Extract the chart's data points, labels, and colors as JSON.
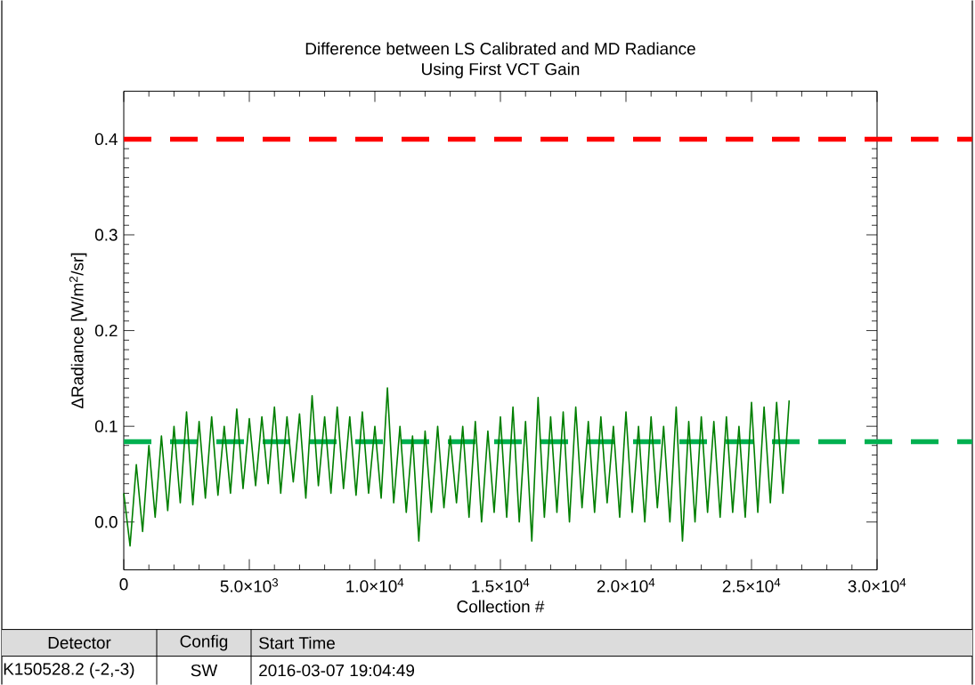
{
  "chart_data": {
    "type": "line",
    "title": "Difference between LS Calibrated and MD Radiance",
    "subtitle": "Using First VCT Gain",
    "xlabel": "Collection #",
    "ylabel": "ΔRadiance [W/m$^{2}$/sr]",
    "xlim": [
      0,
      30000
    ],
    "ylim": [
      -0.05,
      0.45
    ],
    "xticks": [
      0,
      {
        "value": 5000,
        "label": "5.0×10$^{3}$"
      },
      {
        "value": 10000,
        "label": "1.0×10$^{4}$"
      },
      {
        "value": 15000,
        "label": "1.5×10$^{4}$"
      },
      {
        "value": 20000,
        "label": "2.0×10$^{4}$"
      },
      {
        "value": 25000,
        "label": "2.5×10$^{4}$"
      },
      {
        "value": 30000,
        "label": "3.0×10$^{4}$"
      }
    ],
    "yticks": [
      {
        "value": 0,
        "label": "0.0"
      },
      0.1,
      0.2,
      0.3,
      0.4
    ],
    "x": [
      0,
      250,
      500,
      750,
      1000,
      1250,
      1500,
      1750,
      2000,
      2250,
      2500,
      2750,
      3000,
      3250,
      3500,
      3750,
      4000,
      4250,
      4500,
      4750,
      5000,
      5250,
      5500,
      5750,
      6000,
      6250,
      6500,
      6750,
      7000,
      7250,
      7500,
      7750,
      8000,
      8250,
      8500,
      8750,
      9000,
      9250,
      9500,
      9750,
      10000,
      10250,
      10500,
      10750,
      11000,
      11250,
      11500,
      11750,
      12000,
      12250,
      12500,
      12750,
      13000,
      13250,
      13500,
      13750,
      14000,
      14250,
      14500,
      14750,
      15000,
      15250,
      15500,
      15750,
      16000,
      16250,
      16500,
      16750,
      17000,
      17250,
      17500,
      17750,
      18000,
      18250,
      18500,
      18750,
      19000,
      19250,
      19500,
      19750,
      20000,
      20250,
      20500,
      20750,
      21000,
      21250,
      21500,
      21750,
      22000,
      22250,
      22500,
      22750,
      23000,
      23250,
      23500,
      23750,
      24000,
      24250,
      24500,
      24750,
      25000,
      25250,
      25500,
      25750,
      26000,
      26250,
      26500
    ],
    "series": [
      {
        "color": "#007f00",
        "values": [
          0.03,
          -0.025,
          0.06,
          -0.01,
          0.08,
          0.005,
          0.09,
          0.012,
          0.1,
          0.02,
          0.115,
          0.018,
          0.105,
          0.025,
          0.11,
          0.028,
          0.1,
          0.03,
          0.118,
          0.035,
          0.108,
          0.038,
          0.11,
          0.04,
          0.12,
          0.03,
          0.11,
          0.042,
          0.113,
          0.025,
          0.132,
          0.038,
          0.11,
          0.03,
          0.12,
          0.035,
          0.11,
          0.028,
          0.115,
          0.03,
          0.1,
          0.025,
          0.14,
          0.02,
          0.1,
          0.01,
          0.09,
          -0.02,
          0.095,
          0.01,
          0.1,
          0.015,
          0.09,
          0.02,
          0.1,
          0.005,
          0.105,
          0.0,
          0.095,
          0.01,
          0.11,
          0.005,
          0.12,
          0.0,
          0.105,
          -0.02,
          0.13,
          0.005,
          0.11,
          0.01,
          0.115,
          0.0,
          0.12,
          0.015,
          0.105,
          0.01,
          0.11,
          0.02,
          0.1,
          0.005,
          0.115,
          0.01,
          0.1,
          0.0,
          0.11,
          0.015,
          0.1,
          0.0,
          0.12,
          -0.02,
          0.105,
          0.0,
          0.11,
          0.01,
          0.105,
          0.005,
          0.11,
          0.01,
          0.1,
          0.005,
          0.125,
          0.01,
          0.12,
          0.02,
          0.125,
          0.03,
          0.127
        ]
      }
    ],
    "ref_lines": [
      {
        "axis": "y",
        "value": 0.4,
        "color": "#ff0000",
        "line_style": "dashed"
      },
      {
        "axis": "y",
        "value": 0.084,
        "color": "#00b050",
        "line_style": "dashed"
      }
    ],
    "annotations": [
      "Detector",
      "Config",
      "Start Time",
      "K150528.2 (-2,-3)",
      "SW",
      "2016-03-07 19:04:49"
    ]
  }
}
